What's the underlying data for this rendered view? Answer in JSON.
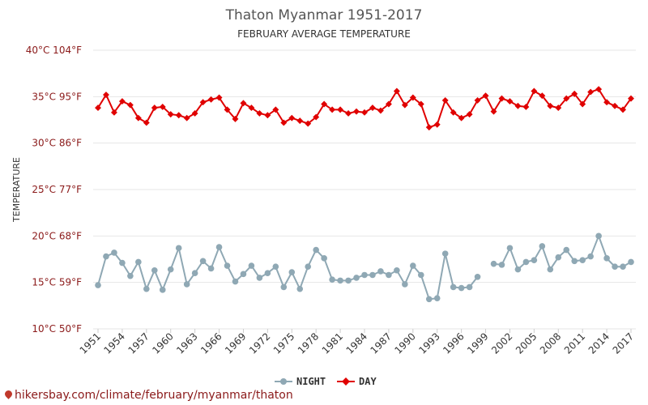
{
  "source_url": "hikersbay.com/climate/february/myanmar/thaton",
  "colors": {
    "night": "#8fa8b4",
    "day": "#e00000",
    "tick": "#8b1a1a"
  },
  "chart_data": {
    "type": "line",
    "title": "Thaton Myanmar 1951-2017",
    "subtitle": "FEBRUARY AVERAGE TEMPERATURE",
    "ylabel": "TEMPERATURE",
    "ylim": [
      10,
      40
    ],
    "yticks": [
      {
        "value": 10,
        "label": "10°C 50°F"
      },
      {
        "value": 15,
        "label": "15°C 59°F"
      },
      {
        "value": 20,
        "label": "20°C 68°F"
      },
      {
        "value": 25,
        "label": "25°C 77°F"
      },
      {
        "value": 30,
        "label": "30°C 86°F"
      },
      {
        "value": 35,
        "label": "35°C 95°F"
      },
      {
        "value": 40,
        "label": "40°C 104°F"
      }
    ],
    "xticks": [
      1951,
      1954,
      1957,
      1960,
      1963,
      1966,
      1969,
      1972,
      1975,
      1978,
      1981,
      1984,
      1987,
      1990,
      1993,
      1996,
      1999,
      2002,
      2005,
      2008,
      2011,
      2014,
      2017
    ],
    "legend_position": "bottom-center",
    "grid": true,
    "x": [
      1951,
      1952,
      1953,
      1954,
      1955,
      1956,
      1957,
      1958,
      1959,
      1960,
      1961,
      1962,
      1963,
      1964,
      1965,
      1966,
      1967,
      1968,
      1969,
      1970,
      1971,
      1972,
      1973,
      1974,
      1975,
      1976,
      1977,
      1978,
      1979,
      1980,
      1981,
      1982,
      1983,
      1984,
      1985,
      1986,
      1987,
      1988,
      1989,
      1990,
      1991,
      1992,
      1993,
      1994,
      1995,
      1996,
      1997,
      1998,
      1999,
      2000,
      2001,
      2002,
      2003,
      2004,
      2005,
      2006,
      2007,
      2008,
      2009,
      2010,
      2011,
      2012,
      2013,
      2014,
      2015,
      2016,
      2017
    ],
    "series": [
      {
        "name": "NIGHT",
        "color": "#8fa8b4",
        "values": [
          14.7,
          17.8,
          18.2,
          17.1,
          15.7,
          17.2,
          14.3,
          16.3,
          14.2,
          16.4,
          18.7,
          14.8,
          16.0,
          17.3,
          16.5,
          18.8,
          16.8,
          15.1,
          15.9,
          16.8,
          15.5,
          16.0,
          16.7,
          14.5,
          16.1,
          14.3,
          16.7,
          18.5,
          17.6,
          15.3,
          15.2,
          15.2,
          15.5,
          15.8,
          15.8,
          16.2,
          15.8,
          16.3,
          14.8,
          16.8,
          15.8,
          13.2,
          13.3,
          18.1,
          14.5,
          14.4,
          14.5,
          15.6,
          null,
          17.0,
          16.9,
          18.7,
          16.4,
          17.2,
          17.4,
          18.9,
          16.4,
          17.7,
          18.5,
          17.3,
          17.4,
          17.8,
          20.0,
          17.6,
          16.7,
          16.7,
          17.2
        ]
      },
      {
        "name": "DAY",
        "color": "#e00000",
        "values": [
          33.8,
          35.2,
          33.3,
          34.5,
          34.1,
          32.7,
          32.2,
          33.8,
          33.9,
          33.1,
          33.0,
          32.7,
          33.2,
          34.4,
          34.7,
          34.9,
          33.6,
          32.6,
          34.3,
          33.8,
          33.2,
          33.0,
          33.6,
          32.2,
          32.7,
          32.4,
          32.1,
          32.8,
          34.2,
          33.6,
          33.6,
          33.2,
          33.4,
          33.3,
          33.8,
          33.5,
          34.2,
          35.6,
          34.1,
          34.9,
          34.2,
          31.7,
          32.0,
          34.6,
          33.3,
          32.7,
          33.1,
          34.6,
          35.1,
          33.4,
          34.8,
          34.5,
          34.0,
          33.9,
          35.6,
          35.1,
          34.0,
          33.8,
          34.8,
          35.3,
          34.2,
          35.5,
          35.8,
          34.4,
          34.0,
          33.6,
          34.8
        ]
      }
    ]
  }
}
